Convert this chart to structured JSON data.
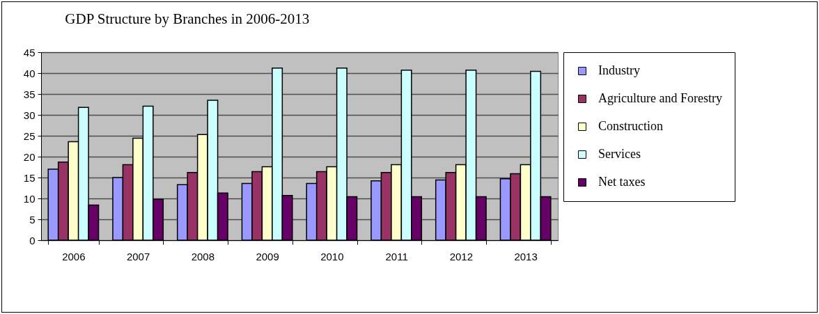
{
  "chart_data": {
    "type": "bar",
    "title": "GDP Structure by Branches in 2006-2013",
    "categories": [
      "2006",
      "2007",
      "2008",
      "2009",
      "2010",
      "2011",
      "2012",
      "2013"
    ],
    "series": [
      {
        "name": "Industry",
        "color": "#9999ff",
        "values": [
          17.0,
          15.0,
          13.3,
          13.6,
          13.6,
          14.2,
          14.4,
          14.7
        ]
      },
      {
        "name": "Agriculture and Forestry",
        "color": "#993366",
        "values": [
          18.7,
          18.1,
          16.2,
          16.4,
          16.4,
          16.2,
          16.2,
          15.9
        ]
      },
      {
        "name": "Construction",
        "color": "#ffffcc",
        "values": [
          23.6,
          24.4,
          25.3,
          17.6,
          17.6,
          18.1,
          18.1,
          18.1
        ]
      },
      {
        "name": "Services",
        "color": "#ccffff",
        "values": [
          31.8,
          32.1,
          33.5,
          41.2,
          41.2,
          40.7,
          40.7,
          40.4
        ]
      },
      {
        "name": "Net taxes",
        "color": "#660066",
        "values": [
          8.4,
          9.8,
          11.3,
          10.7,
          10.4,
          10.4,
          10.4,
          10.4
        ]
      }
    ],
    "ylim": [
      0,
      45
    ],
    "yticks": [
      0,
      5,
      10,
      15,
      20,
      25,
      30,
      35,
      40,
      45
    ],
    "grid": "y",
    "legend": "right"
  }
}
